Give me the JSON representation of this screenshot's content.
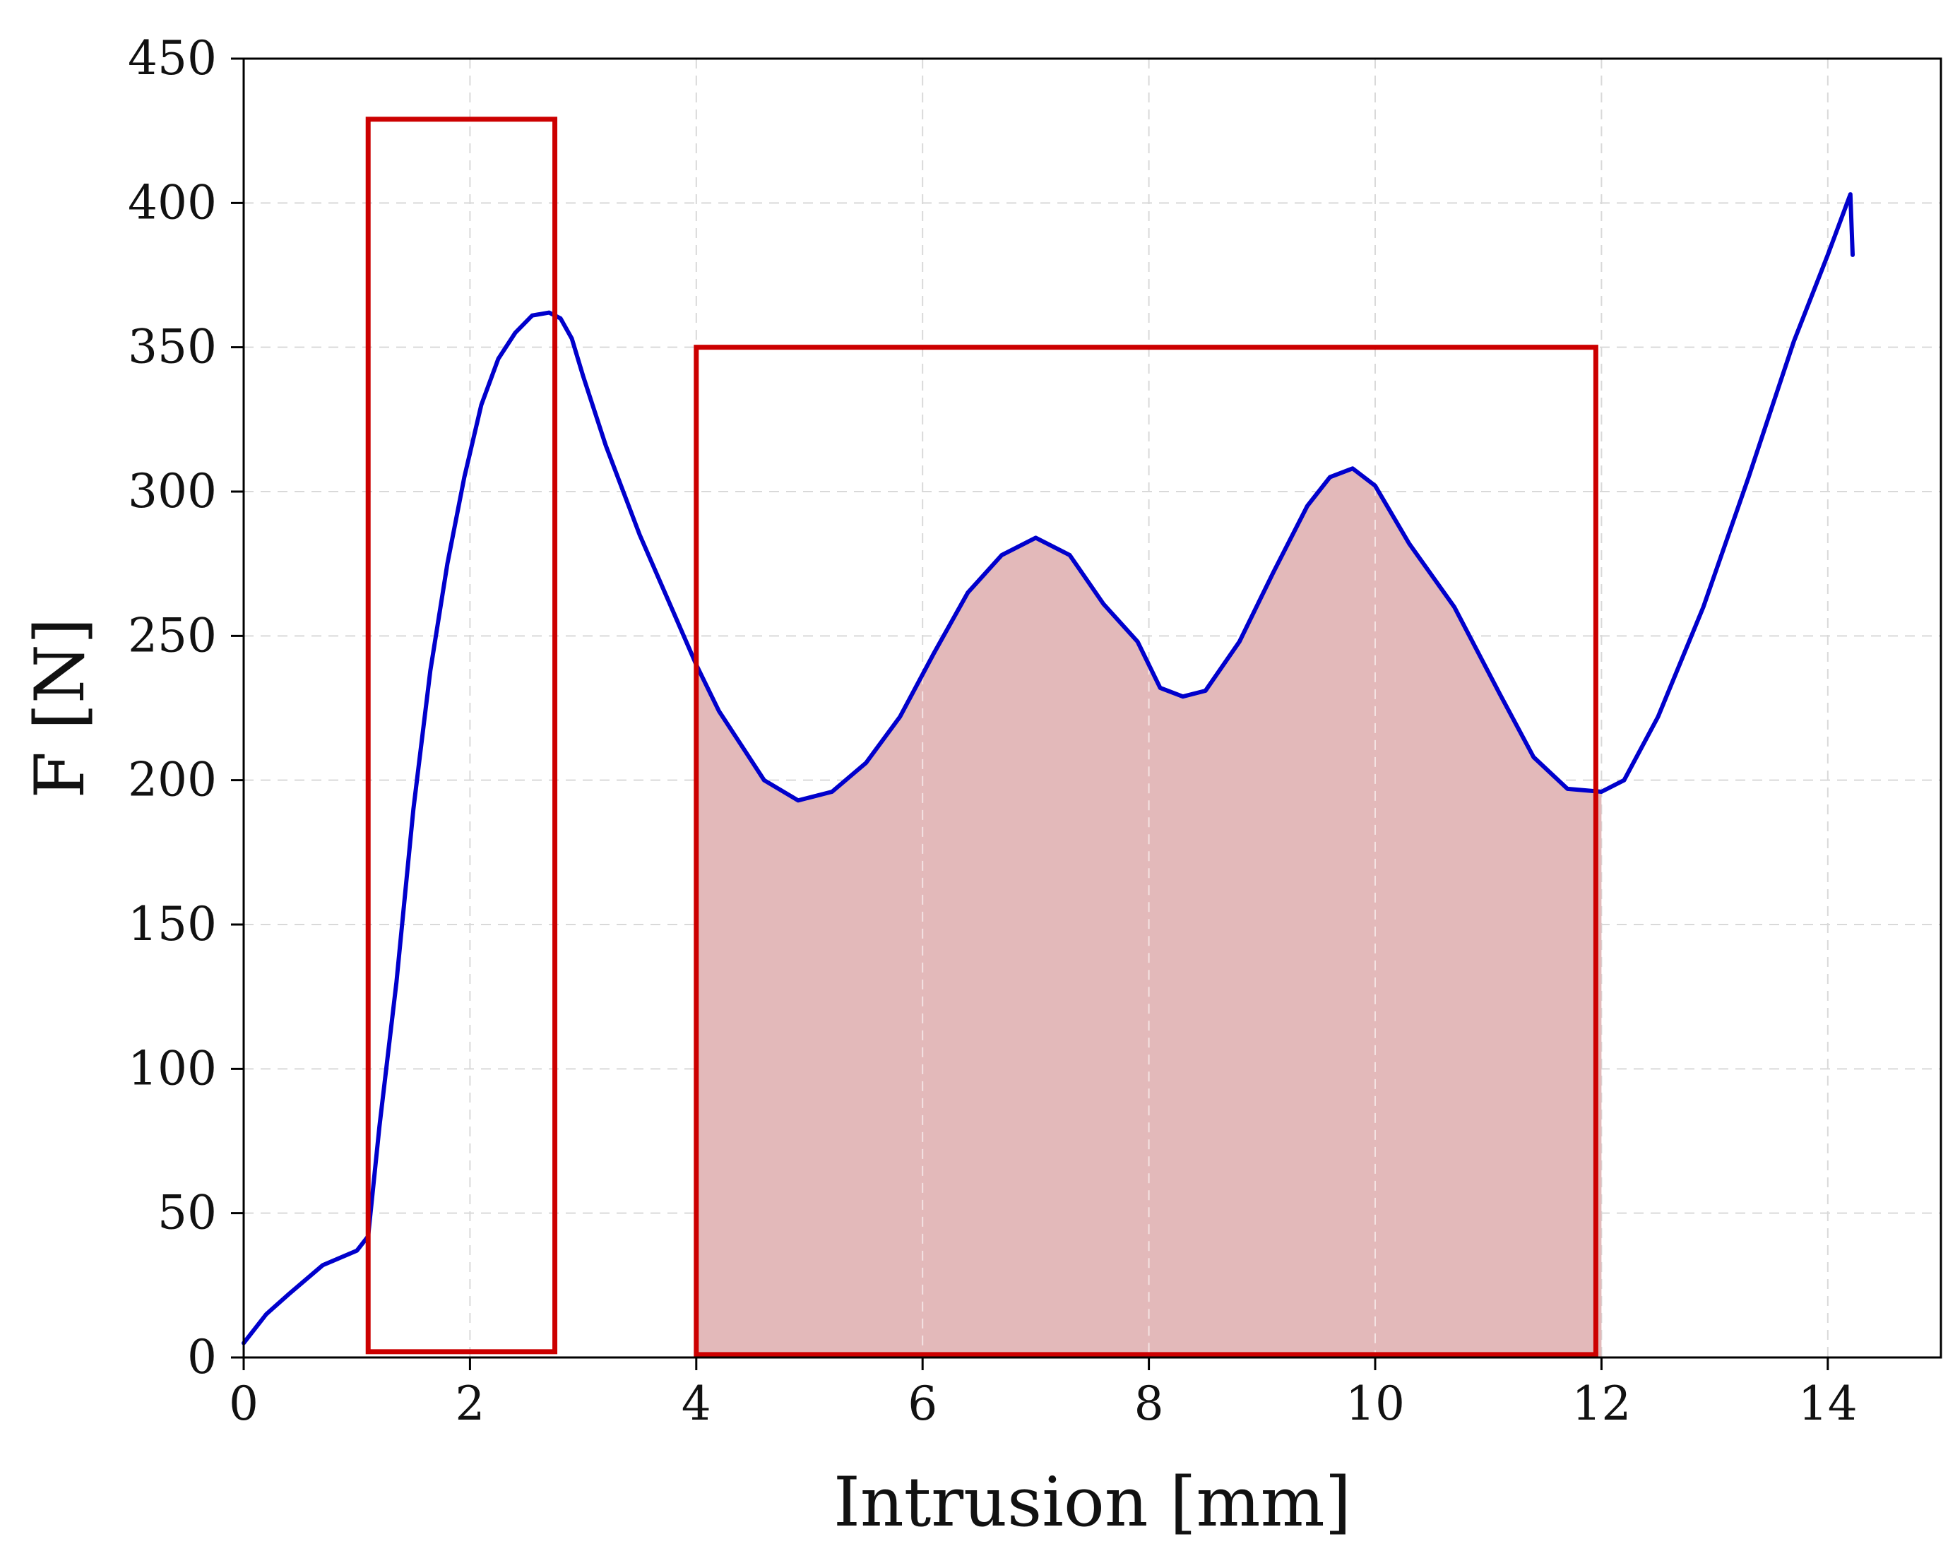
{
  "chart_data": {
    "type": "line",
    "title": "",
    "xlabel": "Intrusion [mm]",
    "ylabel": "F [N]",
    "xlim": [
      0,
      15
    ],
    "ylim": [
      0,
      450
    ],
    "xticks": [
      0,
      2,
      4,
      6,
      8,
      10,
      12,
      14
    ],
    "yticks": [
      0,
      50,
      100,
      150,
      200,
      250,
      300,
      350,
      400,
      450
    ],
    "grid": true,
    "grid_style": "dashed",
    "line_color": "#0000cc",
    "fill_color": "#e3b9ba",
    "box_color": "#cc0000",
    "series": [
      {
        "x": [
          0,
          0.2,
          0.4,
          0.7,
          1.0,
          1.1,
          1.2,
          1.35,
          1.5,
          1.65,
          1.8,
          1.95,
          2.1,
          2.25,
          2.4,
          2.55,
          2.7,
          2.8,
          2.9,
          3.0,
          3.2,
          3.5,
          3.8,
          4.0,
          4.2,
          4.4,
          4.6,
          4.9,
          5.2,
          5.5,
          5.8,
          6.1,
          6.4,
          6.7,
          7.0,
          7.3,
          7.6,
          7.9,
          8.1,
          8.3,
          8.5,
          8.8,
          9.1,
          9.4,
          9.6,
          9.8,
          10.0,
          10.3,
          10.7,
          11.1,
          11.4,
          11.7,
          12.0,
          12.2,
          12.5,
          12.9,
          13.3,
          13.7,
          14.0,
          14.2,
          14.22
        ],
        "y": [
          5,
          15,
          22,
          32,
          37,
          42,
          80,
          130,
          190,
          238,
          275,
          305,
          330,
          346,
          355,
          361,
          362,
          360,
          353,
          340,
          316,
          285,
          258,
          240,
          224,
          212,
          200,
          193,
          196,
          206,
          222,
          244,
          265,
          278,
          284,
          278,
          261,
          248,
          232,
          229,
          231,
          248,
          272,
          295,
          305,
          308,
          302,
          282,
          260,
          230,
          208,
          197,
          196,
          200,
          222,
          260,
          305,
          352,
          382,
          403,
          382
        ]
      }
    ],
    "shaded_region": {
      "x_start": 4,
      "x_end": 12
    },
    "boxes": [
      {
        "x_start": 1.1,
        "x_end": 2.75,
        "y_start": 2,
        "y_end": 429
      },
      {
        "x_start": 4.0,
        "x_end": 11.95,
        "y_start": 1,
        "y_end": 350
      }
    ]
  }
}
